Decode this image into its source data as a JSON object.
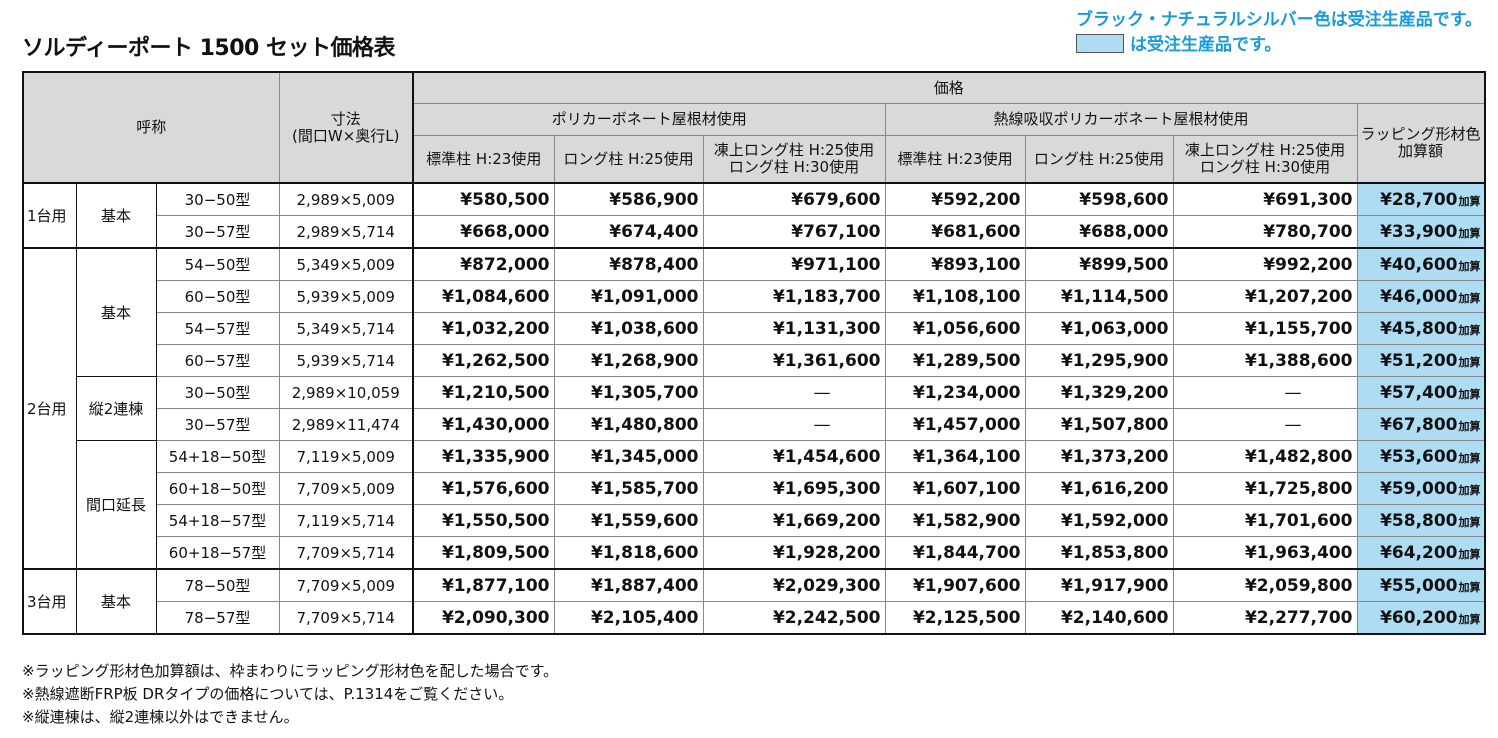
{
  "title": "ソルディーポート 1500 セット価格表",
  "notice": {
    "line1": "ブラック・ナチュラルシルバー色は受注生産品です。",
    "line2": "は受注生産品です。",
    "swatch_color": "#aedcf3",
    "accent_color": "#1a9ad6"
  },
  "header": {
    "name": "呼称",
    "size": "寸法",
    "size_sub": "(間口W×奥行L)",
    "price": "価格",
    "roof1": "ポリカーボネート屋根材使用",
    "roof2": "熱線吸収ポリカーボネート屋根材使用",
    "wrap": "ラッピング形材色",
    "wrap2": "加算額",
    "cols": [
      "標準柱 H:23使用",
      "ロング柱 H:25使用",
      "凍上ロング柱 H:25使用",
      "ロング柱 H:30使用"
    ],
    "add_suffix": "加算"
  },
  "groups": [
    {
      "label": "1台用",
      "subgroups": [
        {
          "label": "基本",
          "rows": [
            {
              "model": "30−50型",
              "size": "2,989×5,009",
              "prices": [
                "¥580,500",
                "¥586,900",
                "¥679,600",
                "¥592,200",
                "¥598,600",
                "¥691,300"
              ],
              "wrap": "¥28,700"
            },
            {
              "model": "30−57型",
              "size": "2,989×5,714",
              "prices": [
                "¥668,000",
                "¥674,400",
                "¥767,100",
                "¥681,600",
                "¥688,000",
                "¥780,700"
              ],
              "wrap": "¥33,900"
            }
          ]
        }
      ]
    },
    {
      "label": "2台用",
      "subgroups": [
        {
          "label": "基本",
          "rows": [
            {
              "model": "54−50型",
              "size": "5,349×5,009",
              "prices": [
                "¥872,000",
                "¥878,400",
                "¥971,100",
                "¥893,100",
                "¥899,500",
                "¥992,200"
              ],
              "wrap": "¥40,600"
            },
            {
              "model": "60−50型",
              "size": "5,939×5,009",
              "prices": [
                "¥1,084,600",
                "¥1,091,000",
                "¥1,183,700",
                "¥1,108,100",
                "¥1,114,500",
                "¥1,207,200"
              ],
              "wrap": "¥46,000"
            },
            {
              "model": "54−57型",
              "size": "5,349×5,714",
              "prices": [
                "¥1,032,200",
                "¥1,038,600",
                "¥1,131,300",
                "¥1,056,600",
                "¥1,063,000",
                "¥1,155,700"
              ],
              "wrap": "¥45,800"
            },
            {
              "model": "60−57型",
              "size": "5,939×5,714",
              "prices": [
                "¥1,262,500",
                "¥1,268,900",
                "¥1,361,600",
                "¥1,289,500",
                "¥1,295,900",
                "¥1,388,600"
              ],
              "wrap": "¥51,200"
            }
          ]
        },
        {
          "label": "縦2連棟",
          "rows": [
            {
              "model": "30−50型",
              "size": "2,989×10,059",
              "prices": [
                "¥1,210,500",
                "¥1,305,700",
                "—",
                "¥1,234,000",
                "¥1,329,200",
                "—"
              ],
              "wrap": "¥57,400"
            },
            {
              "model": "30−57型",
              "size": "2,989×11,474",
              "prices": [
                "¥1,430,000",
                "¥1,480,800",
                "—",
                "¥1,457,000",
                "¥1,507,800",
                "—"
              ],
              "wrap": "¥67,800"
            }
          ]
        },
        {
          "label": "間口延長",
          "rows": [
            {
              "model": "54+18−50型",
              "size": "7,119×5,009",
              "prices": [
                "¥1,335,900",
                "¥1,345,000",
                "¥1,454,600",
                "¥1,364,100",
                "¥1,373,200",
                "¥1,482,800"
              ],
              "wrap": "¥53,600"
            },
            {
              "model": "60+18−50型",
              "size": "7,709×5,009",
              "prices": [
                "¥1,576,600",
                "¥1,585,700",
                "¥1,695,300",
                "¥1,607,100",
                "¥1,616,200",
                "¥1,725,800"
              ],
              "wrap": "¥59,000"
            },
            {
              "model": "54+18−57型",
              "size": "7,119×5,714",
              "prices": [
                "¥1,550,500",
                "¥1,559,600",
                "¥1,669,200",
                "¥1,582,900",
                "¥1,592,000",
                "¥1,701,600"
              ],
              "wrap": "¥58,800"
            },
            {
              "model": "60+18−57型",
              "size": "7,709×5,714",
              "prices": [
                "¥1,809,500",
                "¥1,818,600",
                "¥1,928,200",
                "¥1,844,700",
                "¥1,853,800",
                "¥1,963,400"
              ],
              "wrap": "¥64,200"
            }
          ]
        }
      ]
    },
    {
      "label": "3台用",
      "subgroups": [
        {
          "label": "基本",
          "rows": [
            {
              "model": "78−50型",
              "size": "7,709×5,009",
              "prices": [
                "¥1,877,100",
                "¥1,887,400",
                "¥2,029,300",
                "¥1,907,600",
                "¥1,917,900",
                "¥2,059,800"
              ],
              "wrap": "¥55,000"
            },
            {
              "model": "78−57型",
              "size": "7,709×5,714",
              "prices": [
                "¥2,090,300",
                "¥2,105,400",
                "¥2,242,500",
                "¥2,125,500",
                "¥2,140,600",
                "¥2,277,700"
              ],
              "wrap": "¥60,200"
            }
          ]
        }
      ]
    }
  ],
  "notes": [
    "※ラッピング形材色加算額は、枠まわりにラッピング形材色を配した場合です。",
    "※熱線遮断FRP板 DRタイプの価格については、P.1314をご覧ください。",
    "※縦連棟は、縦2連棟以外はできません。"
  ]
}
